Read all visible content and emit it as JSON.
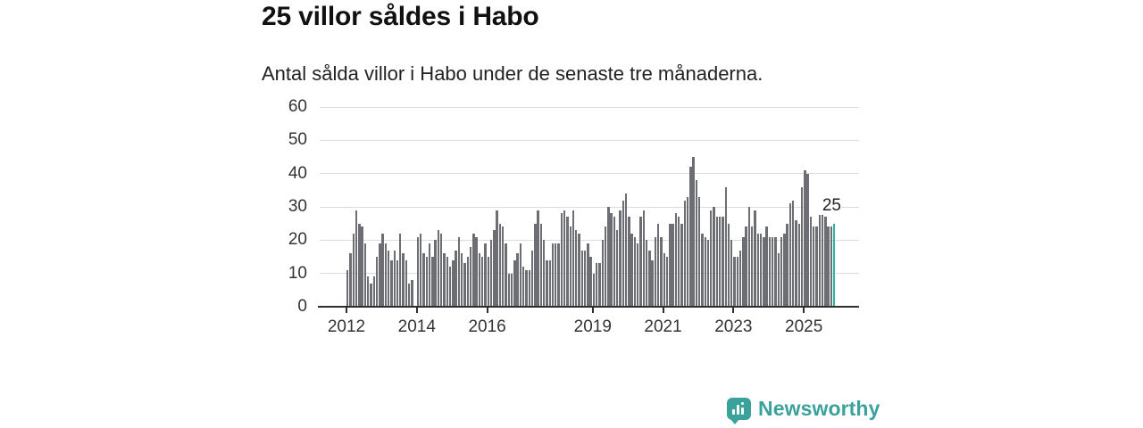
{
  "header": {
    "title": "25 villor såldes i Habo",
    "subtitle": "Antal sålda villor i Habo under de senaste tre månaderna."
  },
  "chart_data": {
    "type": "bar",
    "title": "25 villor såldes i Habo",
    "subtitle": "Antal sålda villor i Habo under de senaste tre månaderna.",
    "unit": "antal sålda villor (rullande tre månader)",
    "frequency": "monthly",
    "x_start": "2012-01",
    "x_end": "2025-11",
    "ylim": [
      0,
      60
    ],
    "y_ticks": [
      0,
      10,
      20,
      30,
      40,
      50,
      60
    ],
    "grid": "horizontal",
    "legend": "none",
    "x_ticks": [
      {
        "label": "2012",
        "month_index": 0
      },
      {
        "label": "2014",
        "month_index": 24
      },
      {
        "label": "2016",
        "month_index": 48
      },
      {
        "label": "2019",
        "month_index": 84
      },
      {
        "label": "2021",
        "month_index": 108
      },
      {
        "label": "2023",
        "month_index": 132
      },
      {
        "label": "2025",
        "month_index": 156
      }
    ],
    "values": [
      11,
      16,
      22,
      29,
      25,
      24,
      19,
      9,
      7,
      9,
      15,
      19,
      22,
      19,
      17,
      14,
      17,
      14,
      22,
      16,
      14,
      7,
      8,
      0,
      21,
      22,
      16,
      15,
      19,
      15,
      20,
      23,
      22,
      16,
      15,
      12,
      14,
      17,
      21,
      16,
      13,
      15,
      18,
      22,
      21,
      16,
      15,
      19,
      15,
      20,
      23,
      29,
      25,
      24,
      19,
      10,
      10,
      14,
      16,
      19,
      12,
      11,
      11,
      17,
      25,
      29,
      25,
      20,
      14,
      14,
      19,
      19,
      19,
      28,
      29,
      27,
      24,
      29,
      23,
      22,
      17,
      17,
      19,
      15,
      10,
      13,
      13,
      20,
      24,
      30,
      28,
      27,
      23,
      29,
      32,
      34,
      27,
      22,
      21,
      19,
      27,
      29,
      20,
      17,
      14,
      21,
      25,
      21,
      16,
      15,
      25,
      25,
      28,
      27,
      25,
      32,
      33,
      42,
      45,
      38,
      33,
      22,
      21,
      20,
      29,
      30,
      27,
      27,
      27,
      36,
      25,
      20,
      15,
      15,
      17,
      21,
      24,
      30,
      24,
      29,
      22,
      22,
      21,
      24,
      21,
      21,
      21,
      16,
      21,
      22,
      25,
      31,
      32,
      26,
      25,
      36,
      41,
      40,
      27,
      24,
      24,
      30,
      30,
      27,
      24,
      24,
      25
    ],
    "highlight_index": 166,
    "annotation": {
      "label": "25",
      "value": 25
    },
    "bar_color": "#6d6d74",
    "highlight_color": "#29b6a9",
    "axis_color": "#2f2f2f",
    "grid_color": "#dcdcdc"
  },
  "footer": {
    "brand": "Newsworthy",
    "brand_color": "#3ba29b",
    "logo_icon": "bar-chart-speech-bubble-icon"
  }
}
